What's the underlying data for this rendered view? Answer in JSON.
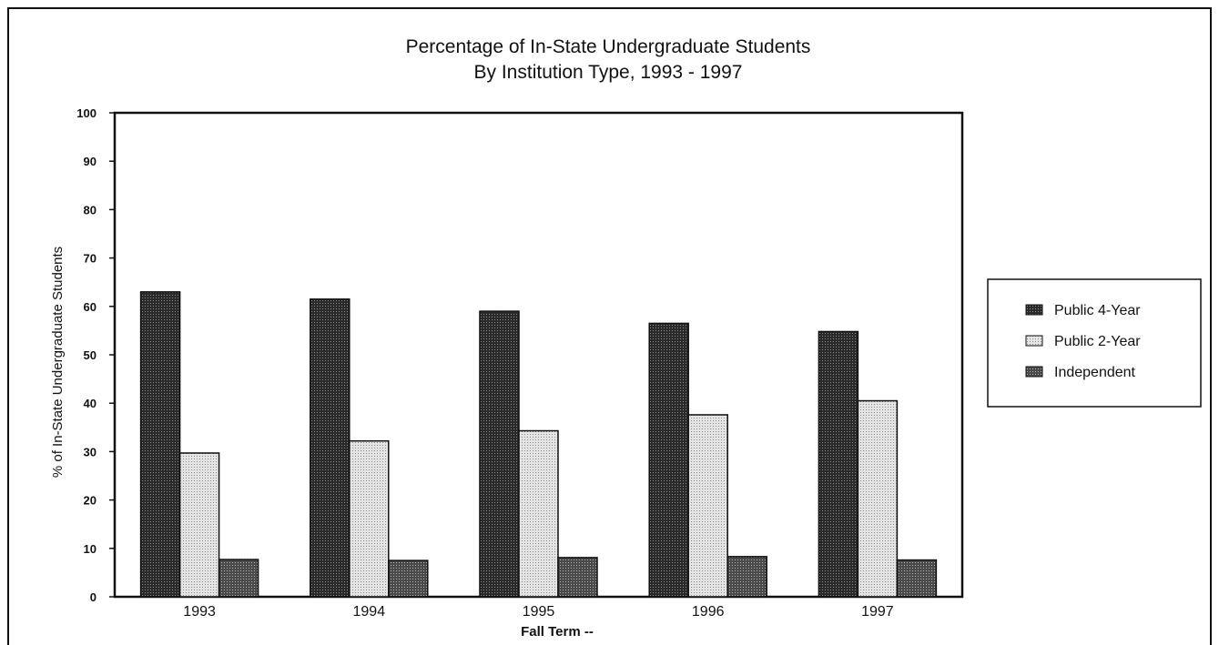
{
  "chart_data": {
    "type": "bar",
    "title": "Percentage of In-State Undergraduate Students",
    "subtitle": "By Institution Type, 1993 - 1997",
    "xlabel": "Fall Term --",
    "ylabel": "% of In-State Undergraduate Students",
    "categories": [
      "1993",
      "1994",
      "1995",
      "1996",
      "1997"
    ],
    "ylim": [
      0,
      100
    ],
    "yticks": [
      0,
      10,
      20,
      30,
      40,
      50,
      60,
      70,
      80,
      90,
      100
    ],
    "grid": false,
    "legend_position": "right",
    "series": [
      {
        "name": "Public 4-Year",
        "values": [
          63,
          61.5,
          59,
          56.5,
          54.8
        ],
        "color": "#3a3a3a"
      },
      {
        "name": "Public 2-Year",
        "values": [
          29.7,
          32.2,
          34.3,
          37.6,
          40.5
        ],
        "color": "#cfcfcf"
      },
      {
        "name": "Independent",
        "values": [
          7.7,
          7.5,
          8.1,
          8.3,
          7.6
        ],
        "color": "#5a5a5a"
      }
    ]
  }
}
